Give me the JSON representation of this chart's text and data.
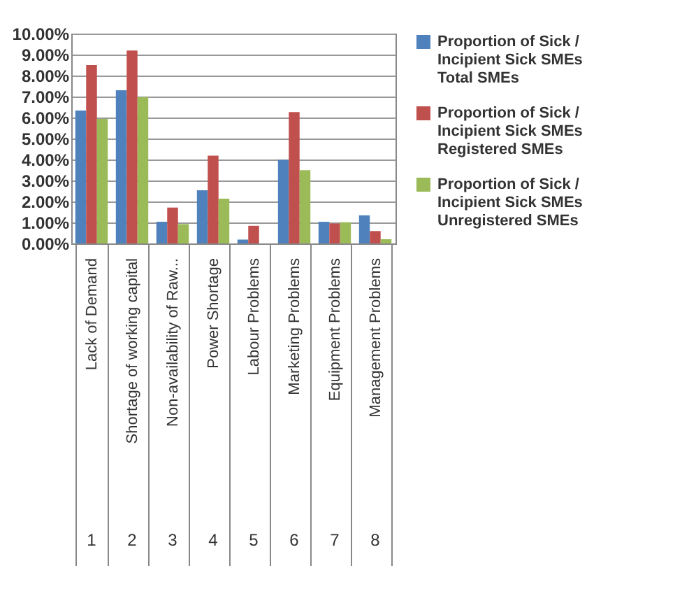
{
  "chart_data": {
    "type": "bar",
    "categories": [
      "Lack of Demand",
      "Shortage of working capital",
      "Non-availability of Raw...",
      "Power Shortage",
      "Labour Problems",
      "Marketing Problems",
      "Equipment Problems",
      "Management Problems"
    ],
    "annotations": [
      "1",
      "2",
      "3",
      "4",
      "5",
      "6",
      "7",
      "8"
    ],
    "series": [
      {
        "name": "Proportion of Sick / Incipient Sick SMEs Total SMEs",
        "color": "#4f81bd",
        "values": [
          6.33,
          7.3,
          1.03,
          2.53,
          0.18,
          3.98,
          1.03,
          1.34
        ]
      },
      {
        "name": "Proportion of Sick / Incipient Sick SMEs Registered SMEs",
        "color": "#c0504d",
        "values": [
          8.5,
          9.19,
          1.71,
          4.18,
          0.84,
          6.26,
          0.95,
          0.59
        ]
      },
      {
        "name": "Proportion of Sick / Incipient Sick SMEs Unregistered SMEs",
        "color": "#9bbb59",
        "values": [
          5.93,
          6.97,
          0.92,
          2.13,
          0.0,
          3.49,
          1.01,
          0.2
        ]
      }
    ],
    "ylim": [
      0,
      10
    ],
    "yticks": [
      {
        "value": 0,
        "label": "0.00%"
      },
      {
        "value": 1,
        "label": "1.00%"
      },
      {
        "value": 2,
        "label": "2.00%"
      },
      {
        "value": 3,
        "label": "3.00%"
      },
      {
        "value": 4,
        "label": "4.00%"
      },
      {
        "value": 5,
        "label": "5.00%"
      },
      {
        "value": 6,
        "label": "6.00%"
      },
      {
        "value": 7,
        "label": "7.00%"
      },
      {
        "value": 8,
        "label": "8.00%"
      },
      {
        "value": 9,
        "label": "9.00%"
      },
      {
        "value": 10,
        "label": "10.00%"
      }
    ],
    "grid": "y",
    "legend": "right"
  }
}
